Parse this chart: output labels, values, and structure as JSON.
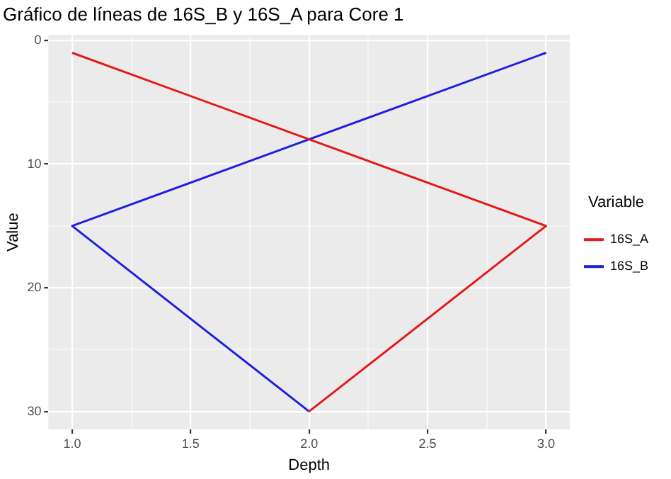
{
  "chart_data": {
    "type": "line",
    "title": "Gráfico de líneas de 16S_B y 16S_A para Core 1",
    "xlabel": "Depth",
    "ylabel": "Value",
    "legend_title": "Variable",
    "series": [
      {
        "name": "16S_A",
        "color": "#e41a1c",
        "x": [
          1,
          2,
          3,
          2
        ],
        "values": [
          1,
          8,
          15,
          30
        ]
      },
      {
        "name": "16S_B",
        "color": "#1f1fe0",
        "x": [
          3,
          2,
          1,
          2
        ],
        "values": [
          1,
          8,
          15,
          30
        ]
      }
    ],
    "xlim": [
      0.9,
      3.1
    ],
    "xticks": [
      {
        "value": 1,
        "label": "1.0"
      },
      {
        "value": 1.25,
        "label": null
      },
      {
        "value": 1.5,
        "label": "1.5"
      },
      {
        "value": 1.75,
        "label": null
      },
      {
        "value": 2,
        "label": "2.0"
      },
      {
        "value": 2.25,
        "label": null
      },
      {
        "value": 2.5,
        "label": "2.5"
      },
      {
        "value": 2.75,
        "label": null
      },
      {
        "value": 3,
        "label": "3.0"
      }
    ],
    "ylim": [
      31.45,
      -0.45
    ],
    "yticks": [
      0,
      {
        "value": 5,
        "label": null
      },
      10,
      {
        "value": 15,
        "label": null
      },
      20,
      {
        "value": 25,
        "label": null
      },
      30
    ],
    "grid": true,
    "legend": "right",
    "marker": "none",
    "line_style": "solid"
  }
}
